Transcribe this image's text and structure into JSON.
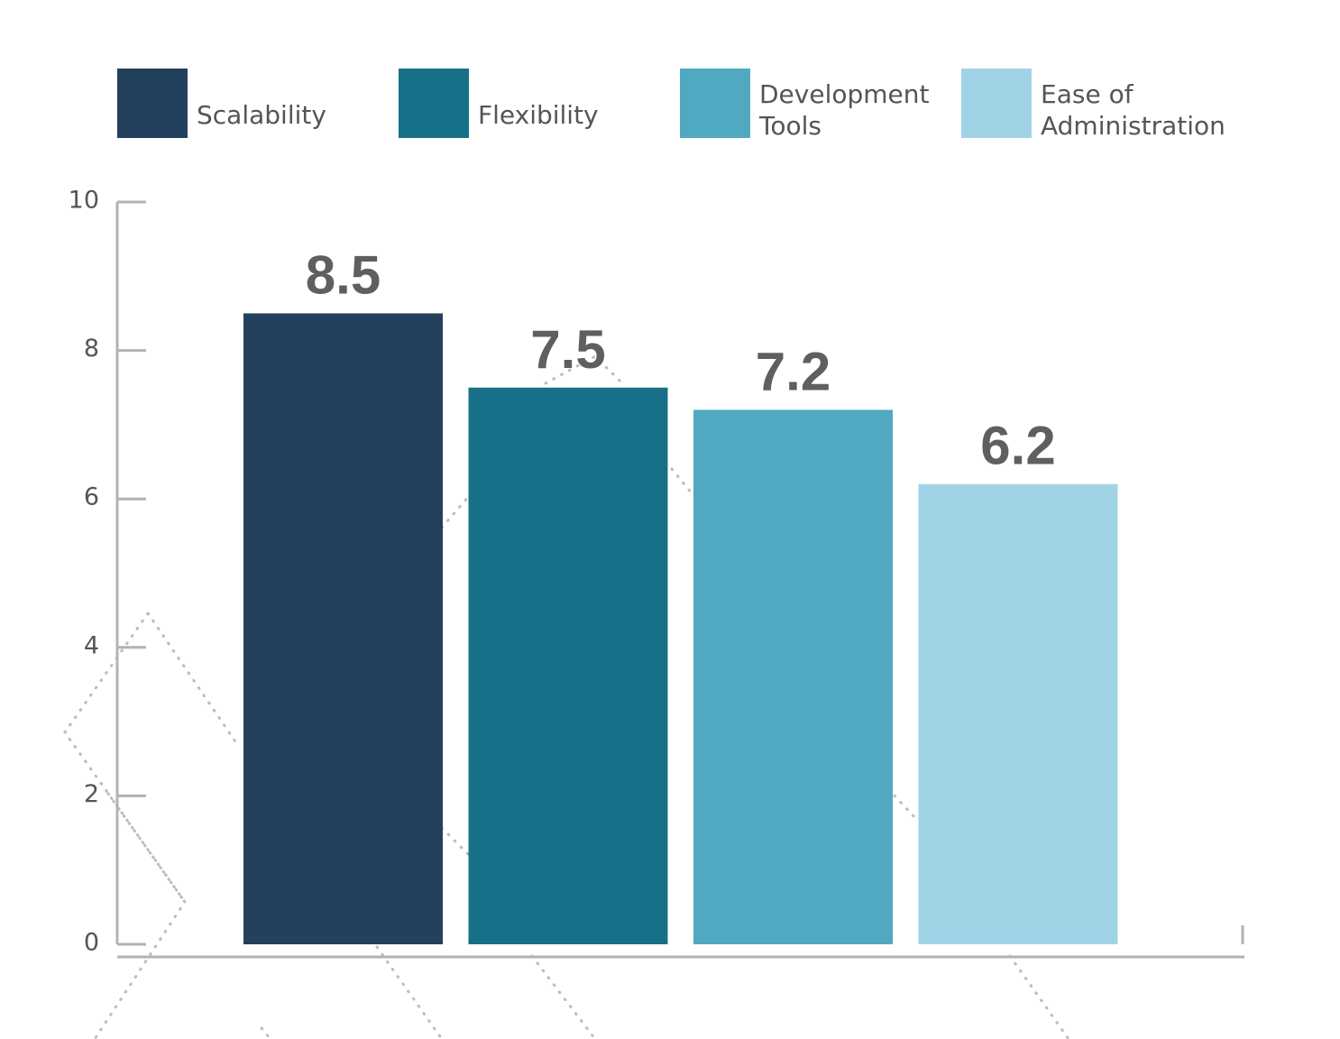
{
  "chart_data": {
    "type": "bar",
    "categories": [
      "Scalability",
      "Flexibility",
      "Development Tools",
      "Ease of Administration"
    ],
    "values": [
      8.5,
      7.5,
      7.2,
      6.2
    ],
    "value_labels": [
      "8.5",
      "7.5",
      "7.2",
      "6.2"
    ],
    "legend": [
      {
        "lines": [
          "Scalability"
        ],
        "color": "#23405c"
      },
      {
        "lines": [
          "Flexibility"
        ],
        "color": "#177088"
      },
      {
        "lines": [
          "Development",
          "Tools"
        ],
        "color": "#50a9c0"
      },
      {
        "lines": [
          "Ease of",
          "Administration"
        ],
        "color": "#a1d3e7"
      }
    ],
    "colors": [
      "#23405c",
      "#177088",
      "#50a9c0",
      "#a1d3e7"
    ],
    "ylim": [
      0,
      10
    ],
    "yticks": [
      "0",
      "2",
      "4",
      "6",
      "8",
      "10"
    ],
    "ytick_values": [
      0,
      2,
      4,
      6,
      8,
      10
    ],
    "legend_position": "top",
    "grid": false,
    "title": "",
    "xlabel": "",
    "ylabel": ""
  }
}
